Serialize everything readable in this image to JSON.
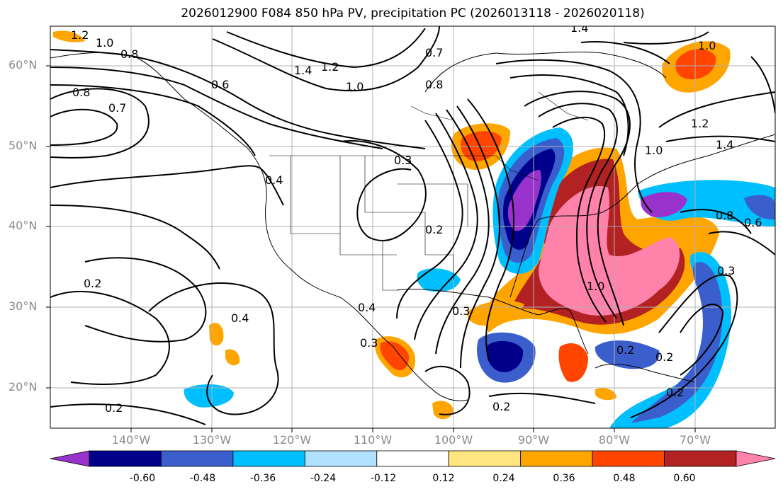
{
  "title": "2026012900 F084 850 hPa PV, precipitation PC (2026013118 - 2026020118)",
  "lat_labels": [
    "60°N",
    "50°N",
    "40°N",
    "30°N",
    "20°N"
  ],
  "lon_labels": [
    "140°W",
    "130°W",
    "120°W",
    "110°W",
    "100°W",
    "90°W",
    "80°W",
    "70°W"
  ],
  "colorbar": {
    "labels": [
      "-0.60",
      "-0.48",
      "-0.36",
      "-0.24",
      "-0.12",
      "0.12",
      "0.24",
      "0.36",
      "0.48",
      "0.60"
    ],
    "colors": [
      "#9932cc",
      "#00008b",
      "#3a5fcd",
      "#00bfff",
      "#b0e2ff",
      "#ffffff",
      "#ffe680",
      "#ffa500",
      "#ff4500",
      "#b22222",
      "#ff82ab"
    ]
  },
  "contour_labels": [
    "1.2",
    "1.0",
    "0.8",
    "0.8",
    "0.7",
    "0.6",
    "1.4",
    "1.2",
    "1.0",
    "0.8",
    "0.7",
    "1.4",
    "0.4",
    "0.3",
    "0.2",
    "0.2",
    "0.4",
    "0.4",
    "0.3",
    "0.2",
    "0.3",
    "1.0",
    "1.2",
    "1.4",
    "1.0",
    "0.8",
    "0.6",
    "0.3",
    "0.2",
    "1.0",
    "0.2",
    "0.2",
    "0.2"
  ]
}
